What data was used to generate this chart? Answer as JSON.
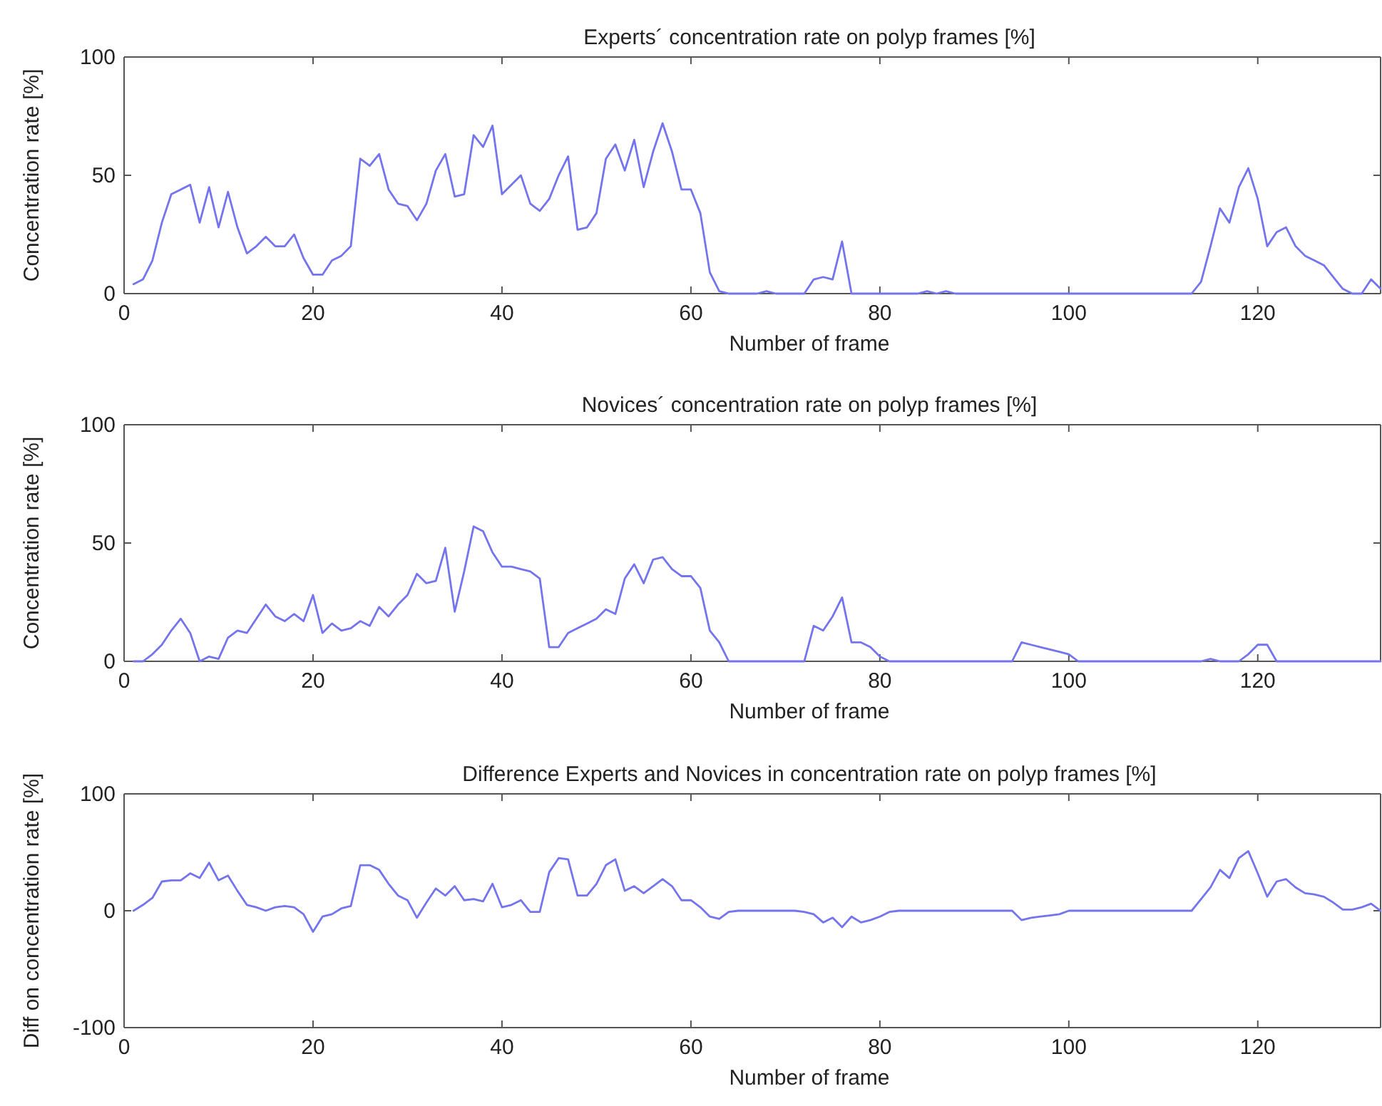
{
  "chart_data": [
    {
      "type": "line",
      "title": "Experts´ concentration rate on polyp frames [%]",
      "xlabel": "Number of frame",
      "ylabel": "Concentration rate [%]",
      "xlim": [
        0,
        133
      ],
      "xticks": [
        0,
        20,
        40,
        60,
        80,
        100,
        120
      ],
      "ylim": [
        0,
        100
      ],
      "yticks": [
        0,
        50,
        100
      ],
      "grid": false,
      "marker": "none",
      "line_style": "solid",
      "x": [
        1,
        2,
        3,
        4,
        5,
        6,
        7,
        8,
        9,
        10,
        11,
        12,
        13,
        14,
        15,
        16,
        17,
        18,
        19,
        20,
        21,
        22,
        23,
        24,
        25,
        26,
        27,
        28,
        29,
        30,
        31,
        32,
        33,
        34,
        35,
        36,
        37,
        38,
        39,
        40,
        41,
        42,
        43,
        44,
        45,
        46,
        47,
        48,
        49,
        50,
        51,
        52,
        53,
        54,
        55,
        56,
        57,
        58,
        59,
        60,
        61,
        62,
        63,
        64,
        65,
        66,
        67,
        68,
        69,
        70,
        71,
        72,
        73,
        74,
        75,
        76,
        77,
        78,
        79,
        80,
        81,
        82,
        83,
        84,
        85,
        86,
        87,
        88,
        89,
        90,
        91,
        92,
        93,
        94,
        95,
        96,
        97,
        98,
        99,
        100,
        101,
        102,
        103,
        104,
        105,
        106,
        107,
        108,
        109,
        110,
        111,
        112,
        113,
        114,
        115,
        116,
        117,
        118,
        119,
        120,
        121,
        122,
        123,
        124,
        125,
        126,
        127,
        128,
        129,
        130,
        131,
        132,
        133
      ],
      "series": [
        {
          "color": "#7474ee",
          "values": [
            4,
            6,
            14,
            30,
            42,
            44,
            46,
            30,
            45,
            28,
            43,
            28,
            17,
            20,
            24,
            20,
            20,
            25,
            15,
            8,
            8,
            14,
            16,
            20,
            57,
            54,
            59,
            44,
            38,
            37,
            31,
            38,
            52,
            59,
            41,
            42,
            67,
            62,
            71,
            42,
            46,
            50,
            38,
            35,
            40,
            50,
            58,
            27,
            28,
            34,
            57,
            63,
            52,
            65,
            45,
            60,
            72,
            60,
            44,
            44,
            34,
            9,
            1,
            0,
            0,
            0,
            0,
            1,
            0,
            0,
            0,
            0,
            6,
            7,
            6,
            22,
            0,
            0,
            0,
            0,
            0,
            0,
            0,
            0,
            1,
            0,
            1,
            0,
            0,
            0,
            0,
            0,
            0,
            0,
            0,
            0,
            0,
            0,
            0,
            0,
            0,
            0,
            0,
            0,
            0,
            0,
            0,
            0,
            0,
            0,
            0,
            0,
            0,
            5,
            20,
            36,
            30,
            45,
            53,
            40,
            20,
            26,
            28,
            20,
            16,
            14,
            12,
            7,
            2,
            0,
            0,
            6,
            2
          ]
        }
      ]
    },
    {
      "type": "line",
      "title": "Novices´ concentration rate on polyp frames [%]",
      "xlabel": "Number of frame",
      "ylabel": "Concentration rate [%]",
      "xlim": [
        0,
        133
      ],
      "xticks": [
        0,
        20,
        40,
        60,
        80,
        100,
        120
      ],
      "ylim": [
        0,
        100
      ],
      "yticks": [
        0,
        50,
        100
      ],
      "grid": false,
      "marker": "none",
      "line_style": "solid",
      "x": [
        1,
        2,
        3,
        4,
        5,
        6,
        7,
        8,
        9,
        10,
        11,
        12,
        13,
        14,
        15,
        16,
        17,
        18,
        19,
        20,
        21,
        22,
        23,
        24,
        25,
        26,
        27,
        28,
        29,
        30,
        31,
        32,
        33,
        34,
        35,
        36,
        37,
        38,
        39,
        40,
        41,
        42,
        43,
        44,
        45,
        46,
        47,
        48,
        49,
        50,
        51,
        52,
        53,
        54,
        55,
        56,
        57,
        58,
        59,
        60,
        61,
        62,
        63,
        64,
        65,
        66,
        67,
        68,
        69,
        70,
        71,
        72,
        73,
        74,
        75,
        76,
        77,
        78,
        79,
        80,
        81,
        82,
        83,
        84,
        85,
        86,
        87,
        88,
        89,
        90,
        91,
        92,
        93,
        94,
        95,
        96,
        97,
        98,
        99,
        100,
        101,
        102,
        103,
        104,
        105,
        106,
        107,
        108,
        109,
        110,
        111,
        112,
        113,
        114,
        115,
        116,
        117,
        118,
        119,
        120,
        121,
        122,
        123,
        124,
        125,
        126,
        127,
        128,
        129,
        130,
        131,
        132,
        133
      ],
      "series": [
        {
          "color": "#7474ee",
          "values": [
            0,
            0,
            3,
            7,
            13,
            18,
            12,
            0,
            2,
            1,
            10,
            13,
            12,
            18,
            24,
            19,
            17,
            20,
            17,
            28,
            12,
            16,
            13,
            14,
            17,
            15,
            23,
            19,
            24,
            28,
            37,
            33,
            34,
            48,
            21,
            38,
            57,
            55,
            46,
            40,
            40,
            39,
            38,
            35,
            6,
            6,
            12,
            14,
            16,
            18,
            22,
            20,
            35,
            41,
            33,
            43,
            44,
            39,
            36,
            36,
            31,
            13,
            8,
            0,
            0,
            0,
            0,
            0,
            0,
            0,
            0,
            0,
            15,
            13,
            19,
            27,
            8,
            8,
            6,
            2,
            0,
            0,
            0,
            0,
            0,
            0,
            0,
            0,
            0,
            0,
            0,
            0,
            0,
            0,
            8,
            7,
            6,
            5,
            4,
            3,
            0,
            0,
            0,
            0,
            0,
            0,
            0,
            0,
            0,
            0,
            0,
            0,
            0,
            0,
            1,
            0,
            0,
            0,
            3,
            7,
            7,
            0,
            0,
            0,
            0,
            0,
            0,
            0,
            0,
            0,
            0,
            0,
            0
          ]
        }
      ]
    },
    {
      "type": "line",
      "title": "Difference Experts and Novices in concentration rate on polyp frames [%]",
      "xlabel": "Number of frame",
      "ylabel": "Diff on concentration rate [%]",
      "xlim": [
        0,
        133
      ],
      "xticks": [
        0,
        20,
        40,
        60,
        80,
        100,
        120
      ],
      "ylim": [
        -100,
        100
      ],
      "yticks": [
        -100,
        0,
        100
      ],
      "grid": false,
      "marker": "none",
      "line_style": "solid",
      "x": [
        1,
        2,
        3,
        4,
        5,
        6,
        7,
        8,
        9,
        10,
        11,
        12,
        13,
        14,
        15,
        16,
        17,
        18,
        19,
        20,
        21,
        22,
        23,
        24,
        25,
        26,
        27,
        28,
        29,
        30,
        31,
        32,
        33,
        34,
        35,
        36,
        37,
        38,
        39,
        40,
        41,
        42,
        43,
        44,
        45,
        46,
        47,
        48,
        49,
        50,
        51,
        52,
        53,
        54,
        55,
        56,
        57,
        58,
        59,
        60,
        61,
        62,
        63,
        64,
        65,
        66,
        67,
        68,
        69,
        70,
        71,
        72,
        73,
        74,
        75,
        76,
        77,
        78,
        79,
        80,
        81,
        82,
        83,
        84,
        85,
        86,
        87,
        88,
        89,
        90,
        91,
        92,
        93,
        94,
        95,
        96,
        97,
        98,
        99,
        100,
        101,
        102,
        103,
        104,
        105,
        106,
        107,
        108,
        109,
        110,
        111,
        112,
        113,
        114,
        115,
        116,
        117,
        118,
        119,
        120,
        121,
        122,
        123,
        124,
        125,
        126,
        127,
        128,
        129,
        130,
        131,
        132,
        133
      ],
      "series": [
        {
          "color": "#7474ee",
          "values": [
            0,
            5,
            11,
            25,
            26,
            26,
            32,
            28,
            41,
            26,
            30,
            17,
            5,
            3,
            0,
            3,
            4,
            3,
            -3,
            -18,
            -5,
            -3,
            2,
            4,
            39,
            39,
            35,
            23,
            13,
            9,
            -6,
            7,
            19,
            13,
            21,
            9,
            10,
            8,
            23,
            3,
            5,
            9,
            -1,
            -1,
            33,
            45,
            44,
            13,
            13,
            23,
            39,
            44,
            17,
            21,
            15,
            21,
            27,
            21,
            9,
            9,
            3,
            -5,
            -7,
            -1,
            0,
            0,
            0,
            0,
            0,
            0,
            0,
            -1,
            -3,
            -10,
            -6,
            -14,
            -5,
            -10,
            -8,
            -5,
            -1,
            0,
            0,
            0,
            0,
            0,
            0,
            0,
            0,
            0,
            0,
            0,
            0,
            0,
            -8,
            -6,
            -5,
            -4,
            -3,
            0,
            0,
            0,
            0,
            0,
            0,
            0,
            0,
            0,
            0,
            0,
            0,
            0,
            0,
            10,
            20,
            35,
            28,
            45,
            51,
            32,
            12,
            25,
            27,
            20,
            15,
            14,
            12,
            7,
            1,
            1,
            3,
            6,
            0
          ]
        }
      ]
    }
  ]
}
